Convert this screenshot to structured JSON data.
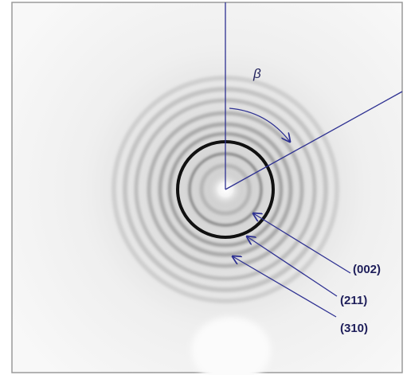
{
  "annotations": {
    "angle": "β",
    "peaks": [
      "(002)",
      "(211)",
      "(310)"
    ]
  }
}
